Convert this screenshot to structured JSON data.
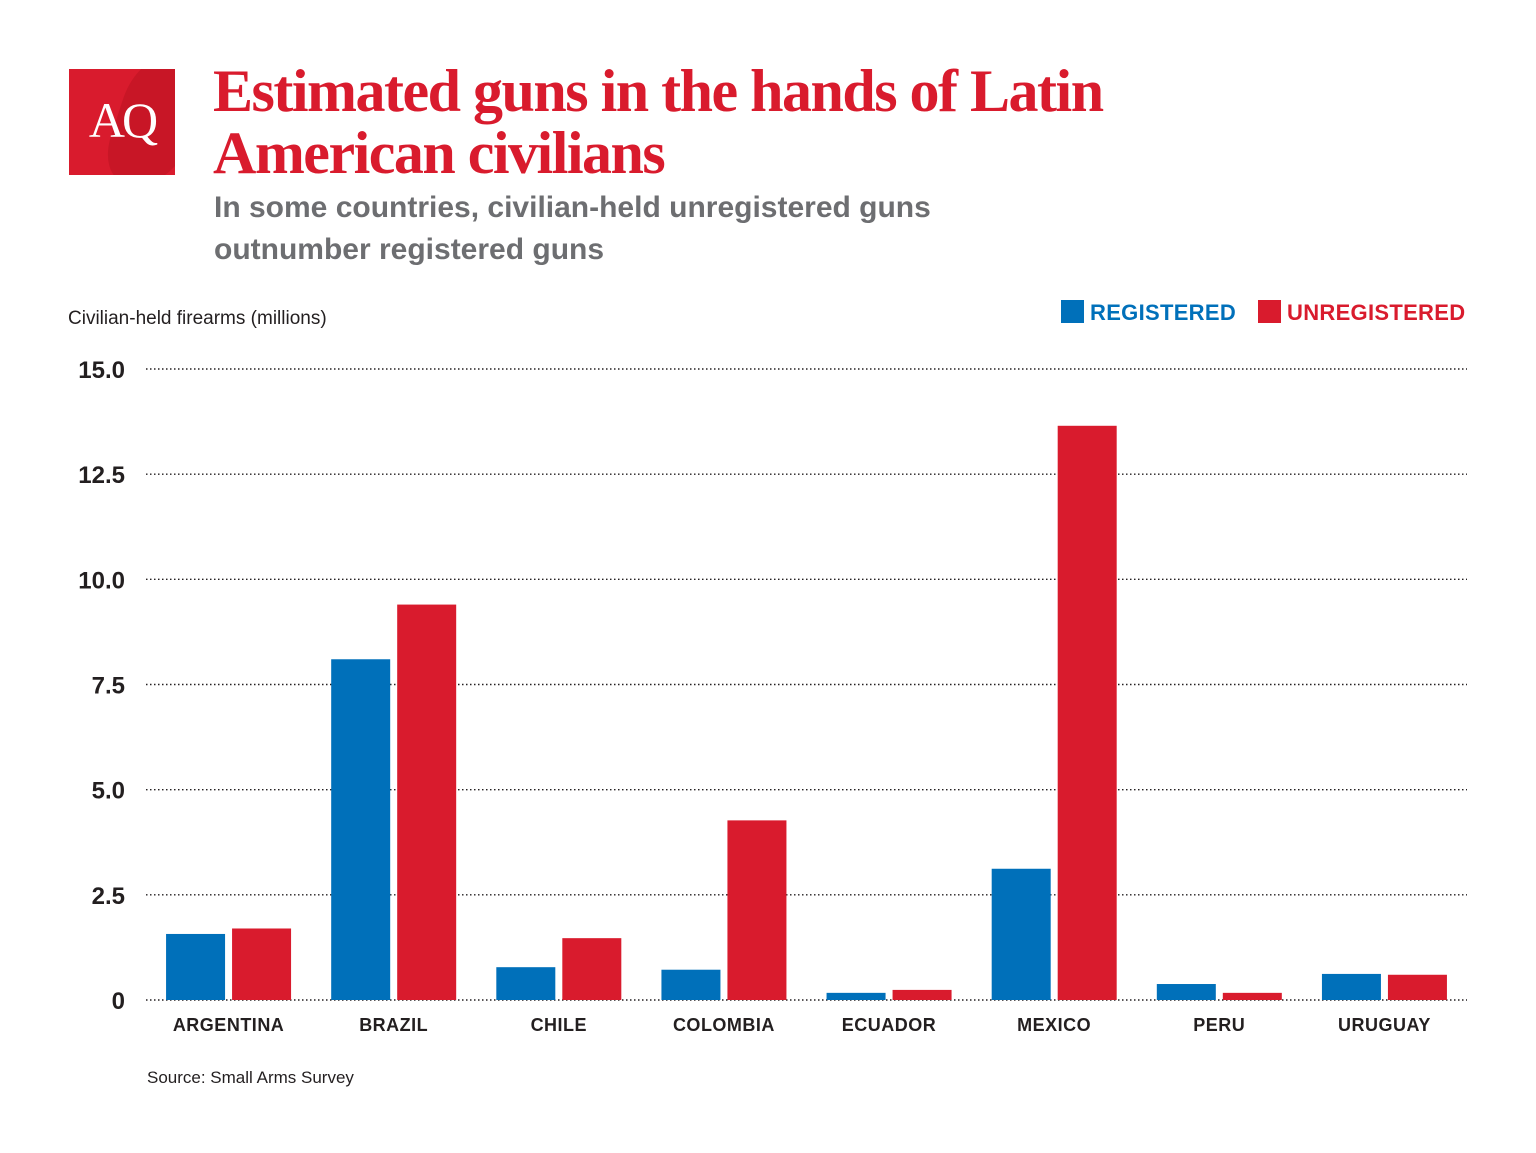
{
  "logo": {
    "text": "AQ"
  },
  "header": {
    "title": "Estimated guns in the hands of Latin American civilians",
    "subtitle": "In some countries, civilian-held unregistered guns outnumber registered guns"
  },
  "source": "Source: Small Arms Survey",
  "colors": {
    "registered": "#0070ba",
    "unregistered": "#d91b2d",
    "title": "#d91b2d",
    "subtitle": "#6d6e71"
  },
  "chart_data": {
    "type": "bar",
    "ylabel": "Civilian-held firearms (millions)",
    "xlabel": "",
    "ylim": [
      0,
      15
    ],
    "yticks": [
      "0",
      "2.5",
      "5.0",
      "7.5",
      "10.0",
      "12.5",
      "15.0"
    ],
    "grid": true,
    "grid_style": "dotted",
    "legend_position": "top-right",
    "categories": [
      "ARGENTINA",
      "BRAZIL",
      "CHILE",
      "COLOMBIA",
      "ECUADOR",
      "MEXICO",
      "PERU",
      "URUGUAY"
    ],
    "series": [
      {
        "name": "REGISTERED",
        "color": "#0070ba",
        "values": [
          1.57,
          8.1,
          0.78,
          0.72,
          0.17,
          3.12,
          0.38,
          0.62
        ]
      },
      {
        "name": "UNREGISTERED",
        "color": "#d91b2d",
        "values": [
          1.7,
          9.4,
          1.47,
          4.27,
          0.24,
          13.65,
          0.17,
          0.6
        ]
      }
    ]
  }
}
